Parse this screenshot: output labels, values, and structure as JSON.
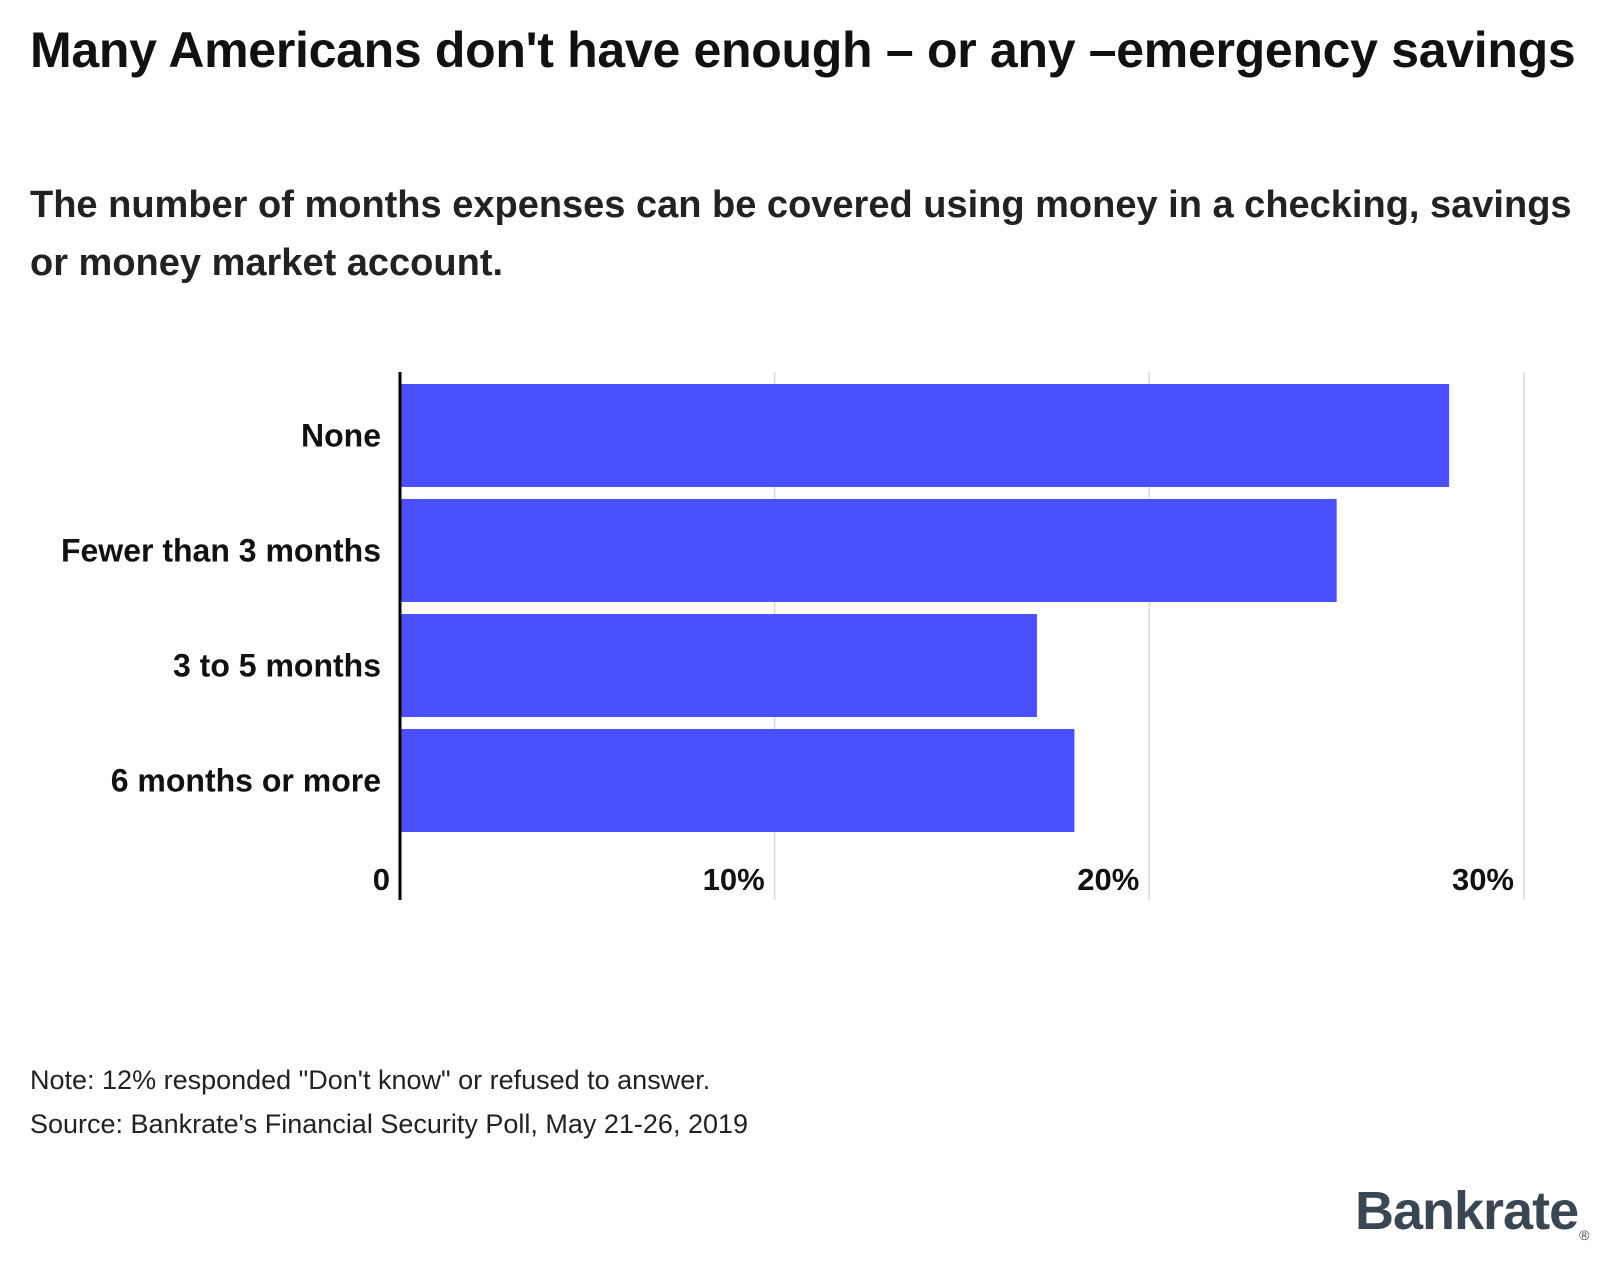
{
  "header": {
    "title": "Many Americans don't have enough – or any –emergency savings",
    "subtitle": "The number of months expenses can be covered using money in a checking, savings or money market account."
  },
  "chart_data": {
    "type": "bar",
    "orientation": "horizontal",
    "categories": [
      "None",
      "Fewer than 3 months",
      "3 to 5 months",
      "6 months or more"
    ],
    "values": [
      28,
      25,
      17,
      18
    ],
    "value_unit": "%",
    "xlim": [
      0,
      30
    ],
    "ticks": [
      0,
      10,
      20,
      30
    ],
    "tick_labels": [
      "0",
      "10%",
      "20%",
      "30%"
    ],
    "grid": true,
    "bar_color": "#4b50ff",
    "title": "Many Americans don't have enough – or any –emergency savings",
    "subtitle": "The number of months expenses can be covered using money in a checking, savings or money market account."
  },
  "footer": {
    "note": "Note: 12% responded \"Don't know\" or refused to answer.",
    "source": "Source: Bankrate's Financial Security Poll, May 21-26, 2019",
    "logo_text": "Bankrate",
    "logo_mark": "®"
  }
}
